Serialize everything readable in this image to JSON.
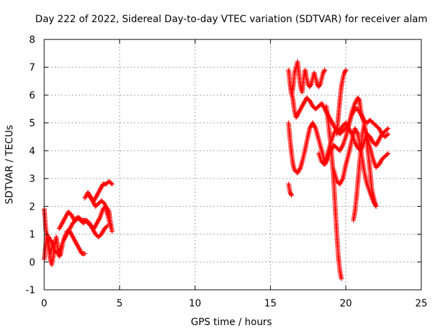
{
  "chart_data": {
    "type": "scatter",
    "title": "Day 222 of 2022, Sidereal Day-to-day VTEC variation (SDTVAR) for receiver alam",
    "xlabel": "GPS time / hours",
    "ylabel": "SDTVAR / TECUs",
    "xlim": [
      0,
      25
    ],
    "ylim": [
      -1,
      8
    ],
    "xticks": [
      "0",
      "5",
      "10",
      "15",
      "20",
      "25"
    ],
    "yticks": [
      "-1",
      "0",
      "1",
      "2",
      "3",
      "4",
      "5",
      "6",
      "7",
      "8"
    ],
    "grid": true,
    "marker": "+",
    "series": [
      {
        "name": "SDTVAR",
        "color": "#ff0000",
        "segments": [
          [
            [
              0.0,
              0.1
            ],
            [
              0.1,
              0.6
            ],
            [
              0.2,
              1.0
            ],
            [
              0.3,
              0.6
            ],
            [
              0.4,
              0.1
            ],
            [
              0.5,
              -0.1
            ],
            [
              0.6,
              0.2
            ],
            [
              0.7,
              0.6
            ],
            [
              0.8,
              0.9
            ],
            [
              0.9,
              0.5
            ],
            [
              1.0,
              0.2
            ],
            [
              1.1,
              0.3
            ],
            [
              1.2,
              0.6
            ]
          ],
          [
            [
              0.0,
              1.9
            ],
            [
              0.05,
              1.6
            ],
            [
              0.1,
              1.2
            ],
            [
              0.2,
              0.8
            ],
            [
              0.3,
              0.5
            ],
            [
              0.4,
              0.3
            ],
            [
              0.5,
              0.5
            ],
            [
              0.6,
              0.7
            ],
            [
              0.7,
              0.5
            ]
          ],
          [
            [
              0.3,
              0.9
            ],
            [
              0.5,
              0.7
            ],
            [
              0.7,
              0.4
            ],
            [
              0.9,
              0.3
            ],
            [
              1.1,
              0.5
            ],
            [
              1.3,
              0.8
            ],
            [
              1.5,
              1.0
            ],
            [
              1.7,
              1.2
            ],
            [
              1.9,
              1.4
            ],
            [
              2.1,
              1.5
            ],
            [
              2.3,
              1.6
            ],
            [
              2.5,
              1.5
            ],
            [
              2.7,
              1.5
            ],
            [
              2.9,
              1.4
            ],
            [
              3.1,
              1.3
            ],
            [
              3.3,
              1.2
            ],
            [
              3.5,
              1.4
            ],
            [
              3.7,
              1.6
            ],
            [
              3.9,
              1.9
            ],
            [
              4.1,
              2.0
            ],
            [
              4.3,
              1.8
            ],
            [
              4.4,
              1.4
            ],
            [
              4.5,
              1.1
            ]
          ],
          [
            [
              1.0,
              1.2
            ],
            [
              1.2,
              1.4
            ],
            [
              1.4,
              1.6
            ],
            [
              1.6,
              1.8
            ],
            [
              1.8,
              1.7
            ],
            [
              2.0,
              1.5
            ],
            [
              2.2,
              1.6
            ],
            [
              2.4,
              1.5
            ],
            [
              2.6,
              1.4
            ],
            [
              2.8,
              1.5
            ],
            [
              3.0,
              1.4
            ],
            [
              3.2,
              1.2
            ],
            [
              3.4,
              1.0
            ],
            [
              3.6,
              0.9
            ],
            [
              3.8,
              1.0
            ],
            [
              4.0,
              1.2
            ],
            [
              4.2,
              1.3
            ]
          ],
          [
            [
              1.3,
              0.8
            ],
            [
              1.5,
              1.1
            ],
            [
              1.7,
              1.1
            ],
            [
              1.9,
              0.9
            ],
            [
              2.1,
              0.7
            ],
            [
              2.3,
              0.5
            ],
            [
              2.5,
              0.3
            ],
            [
              2.7,
              0.3
            ]
          ],
          [
            [
              2.7,
              2.3
            ],
            [
              2.9,
              2.5
            ],
            [
              3.1,
              2.3
            ],
            [
              3.3,
              2.2
            ],
            [
              3.5,
              2.4
            ],
            [
              3.7,
              2.6
            ],
            [
              3.9,
              2.8
            ],
            [
              4.1,
              2.8
            ],
            [
              4.3,
              2.9
            ],
            [
              4.5,
              2.8
            ]
          ],
          [
            [
              3.0,
              2.4
            ],
            [
              3.2,
              2.2
            ],
            [
              3.4,
              2.0
            ],
            [
              3.6,
              2.1
            ],
            [
              3.8,
              2.2
            ],
            [
              4.0,
              2.1
            ],
            [
              4.2,
              1.7
            ],
            [
              4.4,
              1.3
            ]
          ],
          [
            [
              16.2,
              2.8
            ],
            [
              16.3,
              2.5
            ],
            [
              16.4,
              2.4
            ]
          ],
          [
            [
              16.2,
              6.9
            ],
            [
              16.3,
              6.4
            ],
            [
              16.4,
              6.0
            ],
            [
              16.5,
              6.3
            ],
            [
              16.6,
              6.8
            ],
            [
              16.7,
              7.0
            ],
            [
              16.8,
              7.2
            ],
            [
              16.9,
              6.7
            ],
            [
              17.0,
              6.3
            ],
            [
              17.1,
              6.1
            ],
            [
              17.2,
              6.6
            ],
            [
              17.3,
              6.9
            ],
            [
              17.4,
              6.6
            ],
            [
              17.5,
              6.4
            ],
            [
              17.6,
              6.3
            ],
            [
              17.7,
              6.4
            ],
            [
              17.8,
              6.6
            ],
            [
              17.9,
              6.8
            ],
            [
              18.0,
              6.6
            ],
            [
              18.1,
              6.4
            ],
            [
              18.2,
              6.3
            ],
            [
              18.3,
              6.4
            ],
            [
              18.4,
              6.6
            ],
            [
              18.5,
              6.8
            ],
            [
              18.6,
              6.9
            ]
          ],
          [
            [
              16.4,
              6.2
            ],
            [
              16.5,
              5.8
            ],
            [
              16.6,
              5.4
            ],
            [
              16.7,
              5.2
            ],
            [
              16.8,
              5.3
            ],
            [
              17.0,
              5.5
            ],
            [
              17.2,
              5.7
            ],
            [
              17.4,
              5.9
            ],
            [
              17.6,
              5.8
            ],
            [
              17.8,
              5.6
            ],
            [
              18.0,
              5.5
            ],
            [
              18.2,
              5.6
            ],
            [
              18.4,
              5.7
            ],
            [
              18.6,
              5.5
            ],
            [
              18.8,
              5.3
            ],
            [
              19.0,
              5.1
            ],
            [
              19.2,
              4.9
            ],
            [
              19.4,
              4.7
            ],
            [
              19.6,
              4.6
            ],
            [
              19.8,
              4.7
            ],
            [
              20.0,
              4.8
            ],
            [
              20.2,
              5.0
            ],
            [
              20.4,
              5.3
            ],
            [
              20.6,
              5.5
            ],
            [
              20.8,
              5.5
            ],
            [
              21.0,
              5.3
            ],
            [
              21.2,
              5.1
            ],
            [
              21.4,
              5.0
            ],
            [
              21.6,
              5.1
            ],
            [
              21.8,
              5.0
            ],
            [
              22.0,
              4.9
            ],
            [
              22.2,
              4.8
            ],
            [
              22.4,
              4.6
            ],
            [
              22.6,
              4.5
            ],
            [
              22.8,
              4.6
            ]
          ],
          [
            [
              16.2,
              5.0
            ],
            [
              16.3,
              4.4
            ],
            [
              16.4,
              3.9
            ],
            [
              16.5,
              3.5
            ],
            [
              16.6,
              3.3
            ],
            [
              16.8,
              3.2
            ],
            [
              17.0,
              3.4
            ],
            [
              17.2,
              3.8
            ],
            [
              17.4,
              4.3
            ],
            [
              17.6,
              4.8
            ],
            [
              17.8,
              5.0
            ],
            [
              18.0,
              4.8
            ],
            [
              18.2,
              4.4
            ],
            [
              18.4,
              4.0
            ],
            [
              18.6,
              3.6
            ],
            [
              18.8,
              3.9
            ],
            [
              19.0,
              4.3
            ],
            [
              19.2,
              4.6
            ],
            [
              19.4,
              4.8
            ],
            [
              19.6,
              4.7
            ],
            [
              19.8,
              4.9
            ],
            [
              20.0,
              5.0
            ],
            [
              20.2,
              4.8
            ],
            [
              20.4,
              4.6
            ],
            [
              20.6,
              4.3
            ],
            [
              20.8,
              4.1
            ],
            [
              21.0,
              4.0
            ],
            [
              21.2,
              4.3
            ],
            [
              21.4,
              4.6
            ],
            [
              21.6,
              4.5
            ],
            [
              21.8,
              4.3
            ],
            [
              22.0,
              4.2
            ],
            [
              22.2,
              4.4
            ],
            [
              22.4,
              4.6
            ],
            [
              22.6,
              4.7
            ],
            [
              22.8,
              4.8
            ]
          ],
          [
            [
              18.2,
              3.9
            ],
            [
              18.4,
              3.6
            ],
            [
              18.6,
              3.5
            ],
            [
              18.8,
              3.7
            ],
            [
              19.0,
              4.0
            ],
            [
              19.2,
              4.2
            ],
            [
              19.4,
              4.1
            ],
            [
              19.6,
              4.0
            ],
            [
              19.8,
              4.2
            ],
            [
              20.0,
              4.5
            ],
            [
              20.2,
              4.9
            ],
            [
              20.4,
              5.4
            ],
            [
              20.6,
              5.7
            ],
            [
              20.8,
              5.9
            ],
            [
              20.9,
              5.8
            ],
            [
              21.0,
              5.4
            ],
            [
              21.2,
              5.0
            ],
            [
              21.4,
              4.5
            ],
            [
              21.6,
              4.1
            ],
            [
              21.8,
              3.7
            ],
            [
              22.0,
              3.4
            ],
            [
              22.2,
              3.5
            ],
            [
              22.4,
              3.7
            ],
            [
              22.6,
              3.8
            ],
            [
              22.8,
              3.9
            ]
          ],
          [
            [
              18.7,
              5.6
            ],
            [
              18.8,
              5.2
            ],
            [
              18.9,
              4.7
            ],
            [
              19.0,
              4.2
            ],
            [
              19.1,
              3.6
            ],
            [
              19.2,
              2.9
            ],
            [
              19.3,
              1.9
            ],
            [
              19.4,
              1.0
            ],
            [
              19.5,
              0.2
            ],
            [
              19.6,
              -0.3
            ],
            [
              19.7,
              -0.6
            ]
          ],
          [
            [
              19.2,
              3.3
            ],
            [
              19.4,
              2.9
            ],
            [
              19.6,
              2.8
            ],
            [
              19.8,
              3.0
            ],
            [
              20.0,
              3.5
            ],
            [
              20.2,
              3.9
            ],
            [
              20.4,
              4.4
            ],
            [
              20.6,
              4.8
            ],
            [
              20.8,
              4.6
            ],
            [
              21.0,
              4.0
            ],
            [
              21.2,
              3.3
            ],
            [
              21.4,
              2.8
            ],
            [
              21.6,
              2.5
            ],
            [
              21.8,
              2.2
            ],
            [
              22.0,
              2.0
            ]
          ],
          [
            [
              19.4,
              4.6
            ],
            [
              19.5,
              5.2
            ],
            [
              19.6,
              5.8
            ],
            [
              19.7,
              6.3
            ],
            [
              19.8,
              6.6
            ],
            [
              19.9,
              6.8
            ],
            [
              20.0,
              6.9
            ]
          ],
          [
            [
              20.5,
              1.5
            ],
            [
              20.6,
              1.8
            ],
            [
              20.7,
              2.3
            ],
            [
              20.8,
              2.9
            ],
            [
              20.9,
              3.5
            ],
            [
              21.0,
              4.1
            ],
            [
              21.1,
              4.6
            ],
            [
              21.2,
              4.9
            ],
            [
              21.3,
              4.7
            ],
            [
              21.4,
              4.3
            ],
            [
              21.5,
              3.8
            ],
            [
              21.6,
              3.3
            ],
            [
              21.7,
              2.7
            ],
            [
              21.8,
              2.4
            ],
            [
              21.9,
              2.2
            ],
            [
              22.0,
              2.0
            ]
          ]
        ]
      }
    ]
  }
}
